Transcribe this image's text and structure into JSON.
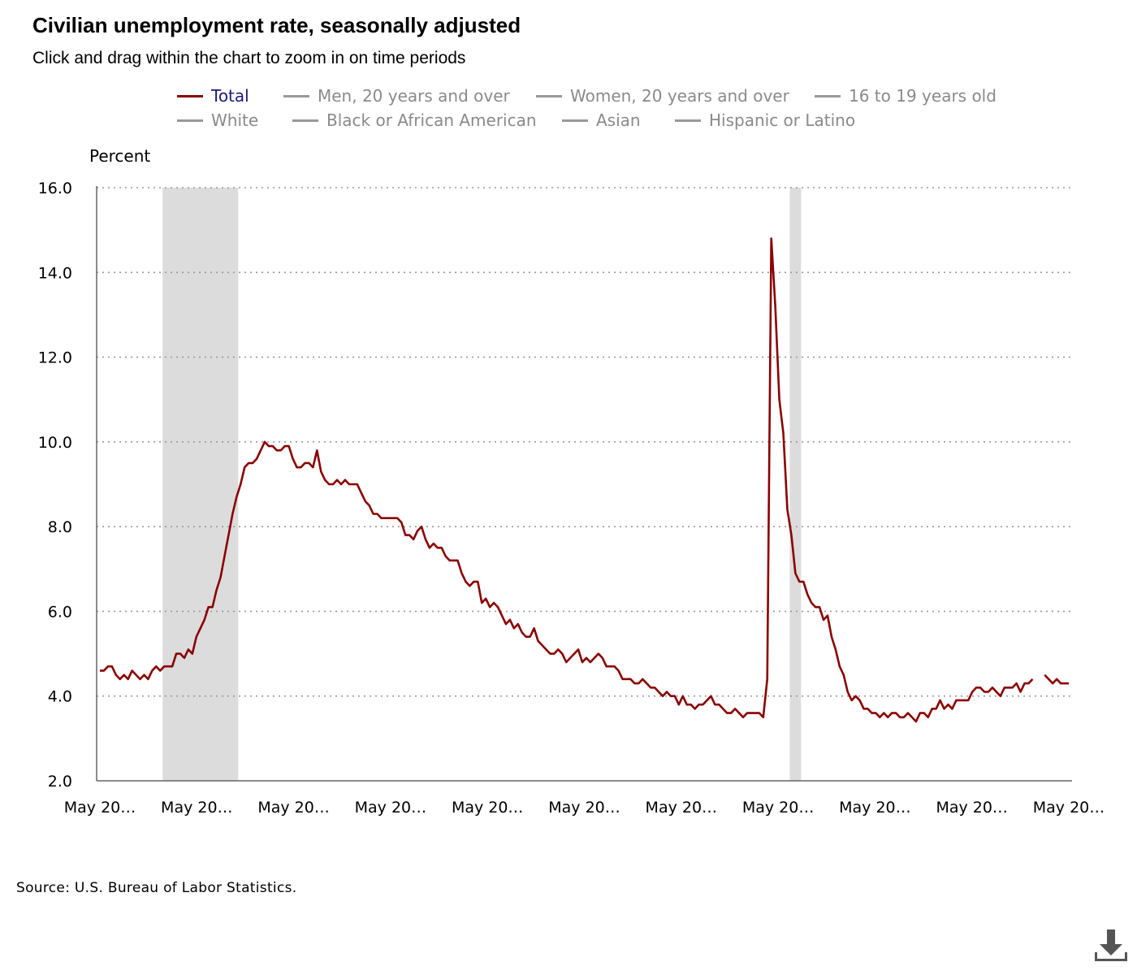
{
  "chart_data": {
    "type": "line",
    "title": "Civilian unemployment rate, seasonally adjusted",
    "subtitle": "Click and drag within the chart to zoom in on time periods",
    "ylabel": "Percent",
    "ylim": [
      2.0,
      16.0
    ],
    "y_ticks": [
      "16.0",
      "14.0",
      "12.0",
      "10.0",
      "8.0",
      "6.0",
      "4.0",
      "2.0"
    ],
    "x_ticks": [
      "May 20…",
      "May 20…",
      "May 20…",
      "May 20…",
      "May 20…",
      "May 20…",
      "May 20…",
      "May 20…",
      "May 20…",
      "May 20…",
      "May 20…"
    ],
    "grid": "horizontal dotted",
    "recessions": [
      {
        "start_index": 16,
        "end_index": 34
      },
      {
        "start_index": 172,
        "end_index": 174
      }
    ],
    "series": [
      {
        "name": "Total",
        "color": "#8b0000",
        "values": [
          4.6,
          4.6,
          4.7,
          4.7,
          4.5,
          4.4,
          4.5,
          4.4,
          4.6,
          4.5,
          4.4,
          4.5,
          4.4,
          4.6,
          4.7,
          4.6,
          4.7,
          4.7,
          4.7,
          5.0,
          5.0,
          4.9,
          5.1,
          5.0,
          5.4,
          5.6,
          5.8,
          6.1,
          6.1,
          6.5,
          6.8,
          7.3,
          7.8,
          8.3,
          8.7,
          9.0,
          9.4,
          9.5,
          9.5,
          9.6,
          9.8,
          10.0,
          9.9,
          9.9,
          9.8,
          9.8,
          9.9,
          9.9,
          9.6,
          9.4,
          9.4,
          9.5,
          9.5,
          9.4,
          9.8,
          9.3,
          9.1,
          9.0,
          9.0,
          9.1,
          9.0,
          9.1,
          9.0,
          9.0,
          9.0,
          8.8,
          8.6,
          8.5,
          8.3,
          8.3,
          8.2,
          8.2,
          8.2,
          8.2,
          8.2,
          8.1,
          7.8,
          7.8,
          7.7,
          7.9,
          8.0,
          7.7,
          7.5,
          7.6,
          7.5,
          7.5,
          7.3,
          7.2,
          7.2,
          7.2,
          6.9,
          6.7,
          6.6,
          6.7,
          6.7,
          6.2,
          6.3,
          6.1,
          6.2,
          6.1,
          5.9,
          5.7,
          5.8,
          5.6,
          5.7,
          5.5,
          5.4,
          5.4,
          5.6,
          5.3,
          5.2,
          5.1,
          5.0,
          5.0,
          5.1,
          5.0,
          4.8,
          4.9,
          5.0,
          5.1,
          4.8,
          4.9,
          4.8,
          4.9,
          5.0,
          4.9,
          4.7,
          4.7,
          4.7,
          4.6,
          4.4,
          4.4,
          4.4,
          4.3,
          4.3,
          4.4,
          4.3,
          4.2,
          4.2,
          4.1,
          4.0,
          4.1,
          4.0,
          4.0,
          3.8,
          4.0,
          3.8,
          3.8,
          3.7,
          3.8,
          3.8,
          3.9,
          4.0,
          3.8,
          3.8,
          3.7,
          3.6,
          3.6,
          3.7,
          3.6,
          3.5,
          3.6,
          3.6,
          3.6,
          3.6,
          3.5,
          4.4,
          14.8,
          13.2,
          11.0,
          10.2,
          8.4,
          7.8,
          6.9,
          6.7,
          6.7,
          6.4,
          6.2,
          6.1,
          6.1,
          5.8,
          5.9,
          5.4,
          5.1,
          4.7,
          4.5,
          4.1,
          3.9,
          4.0,
          3.9,
          3.7,
          3.7,
          3.6,
          3.6,
          3.5,
          3.6,
          3.5,
          3.6,
          3.6,
          3.5,
          3.5,
          3.6,
          3.5,
          3.4,
          3.6,
          3.6,
          3.5,
          3.7,
          3.7,
          3.9,
          3.7,
          3.8,
          3.7,
          3.9,
          3.9,
          3.9,
          3.9,
          4.1,
          4.2,
          4.2,
          4.1,
          4.1,
          4.2,
          4.1,
          4.0,
          4.2,
          4.2,
          4.2,
          4.3,
          4.1,
          4.3,
          4.3,
          4.4,
          null,
          null,
          4.5,
          4.4,
          4.3,
          4.4,
          4.3,
          4.3,
          4.3
        ]
      }
    ]
  },
  "legend": {
    "row1": [
      "Total",
      "Men, 20 years and over",
      "Women, 20 years and over",
      "16 to 19 years old"
    ],
    "row2": [
      "White",
      "Black or African American",
      "Asian",
      "Hispanic or Latino"
    ]
  },
  "source": "Source: U.S. Bureau of Labor Statistics.",
  "icons": {
    "download": "download-icon"
  }
}
